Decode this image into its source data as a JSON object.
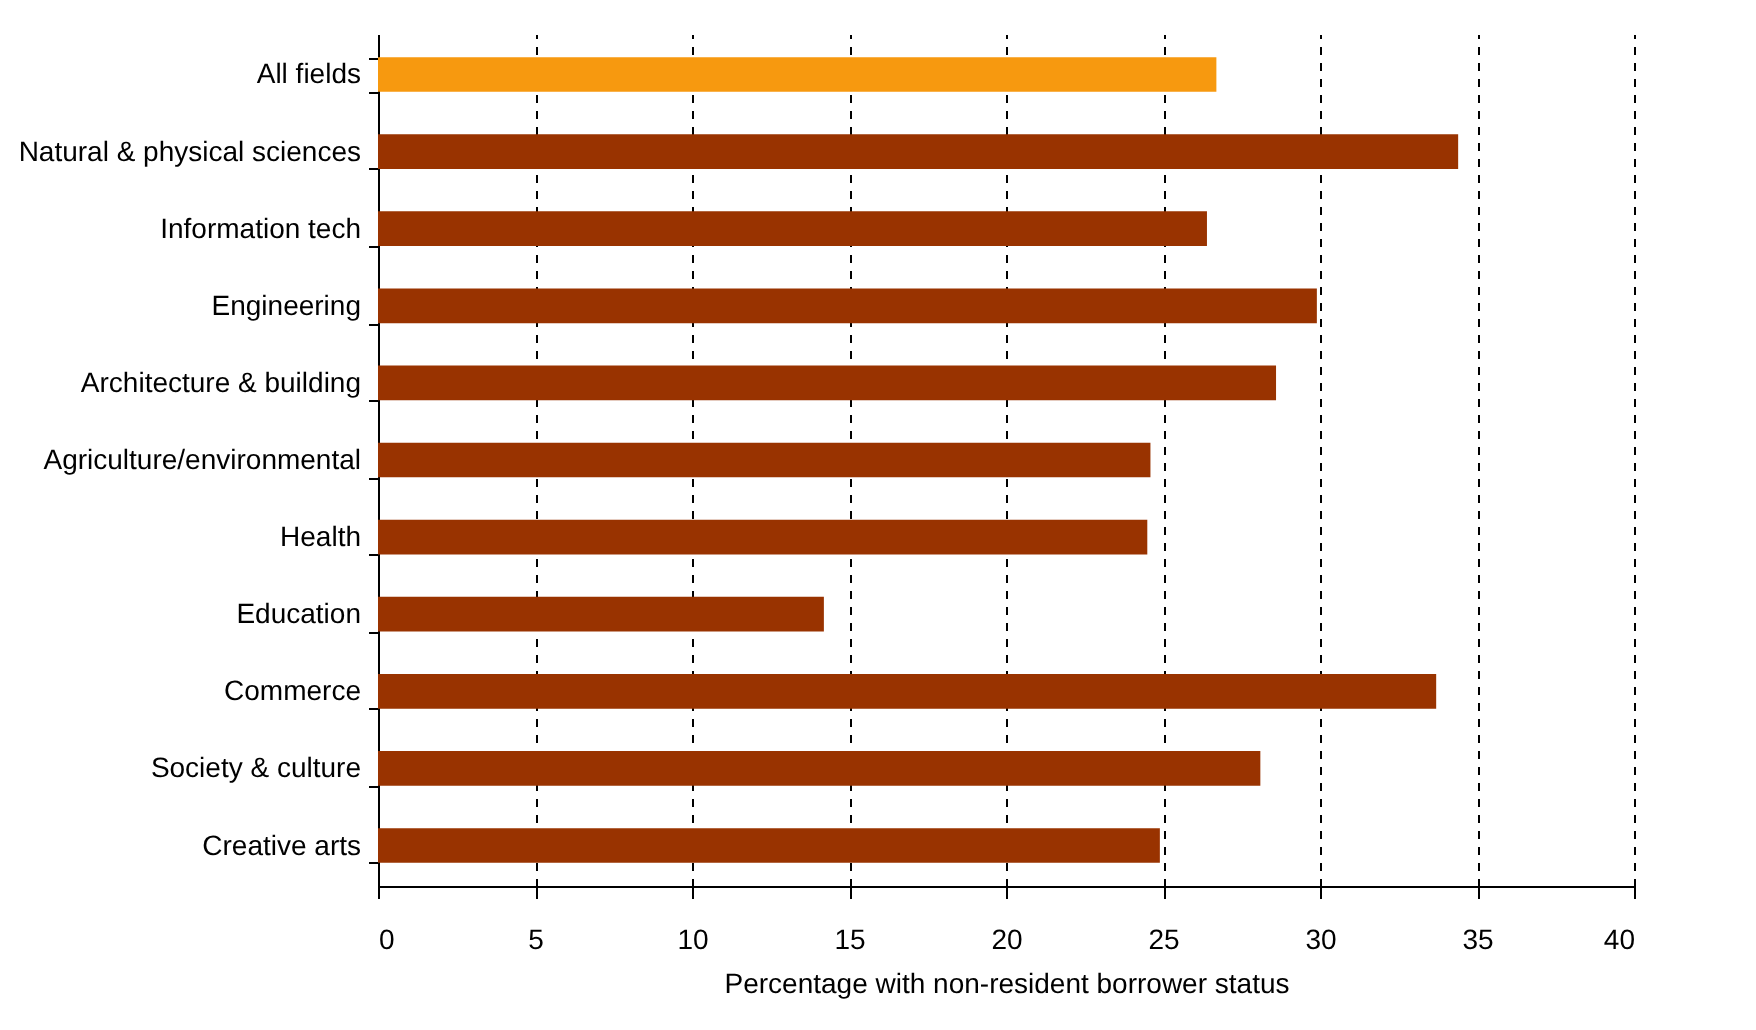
{
  "chart_data": {
    "type": "bar",
    "orientation": "horizontal",
    "xlabel": "Percentage with non-resident borrower status",
    "categories": [
      "All fields",
      "Natural & physical sciences",
      "Information tech",
      "Engineering",
      "Architecture & building",
      "Agriculture/environmental",
      "Health",
      "Education",
      "Commerce",
      "Society & culture",
      "Creative arts"
    ],
    "values": [
      26.7,
      34.4,
      26.4,
      29.9,
      28.6,
      24.6,
      24.5,
      14.2,
      33.7,
      28.1,
      24.9
    ],
    "colors": [
      "#f7990f",
      "#993300",
      "#993300",
      "#993300",
      "#993300",
      "#993300",
      "#993300",
      "#993300",
      "#993300",
      "#993300",
      "#993300"
    ],
    "xlim": [
      0,
      40
    ],
    "xticks": [
      0,
      5,
      10,
      15,
      20,
      25,
      30,
      35,
      40
    ],
    "grid": "x",
    "line_style": "dashed"
  }
}
